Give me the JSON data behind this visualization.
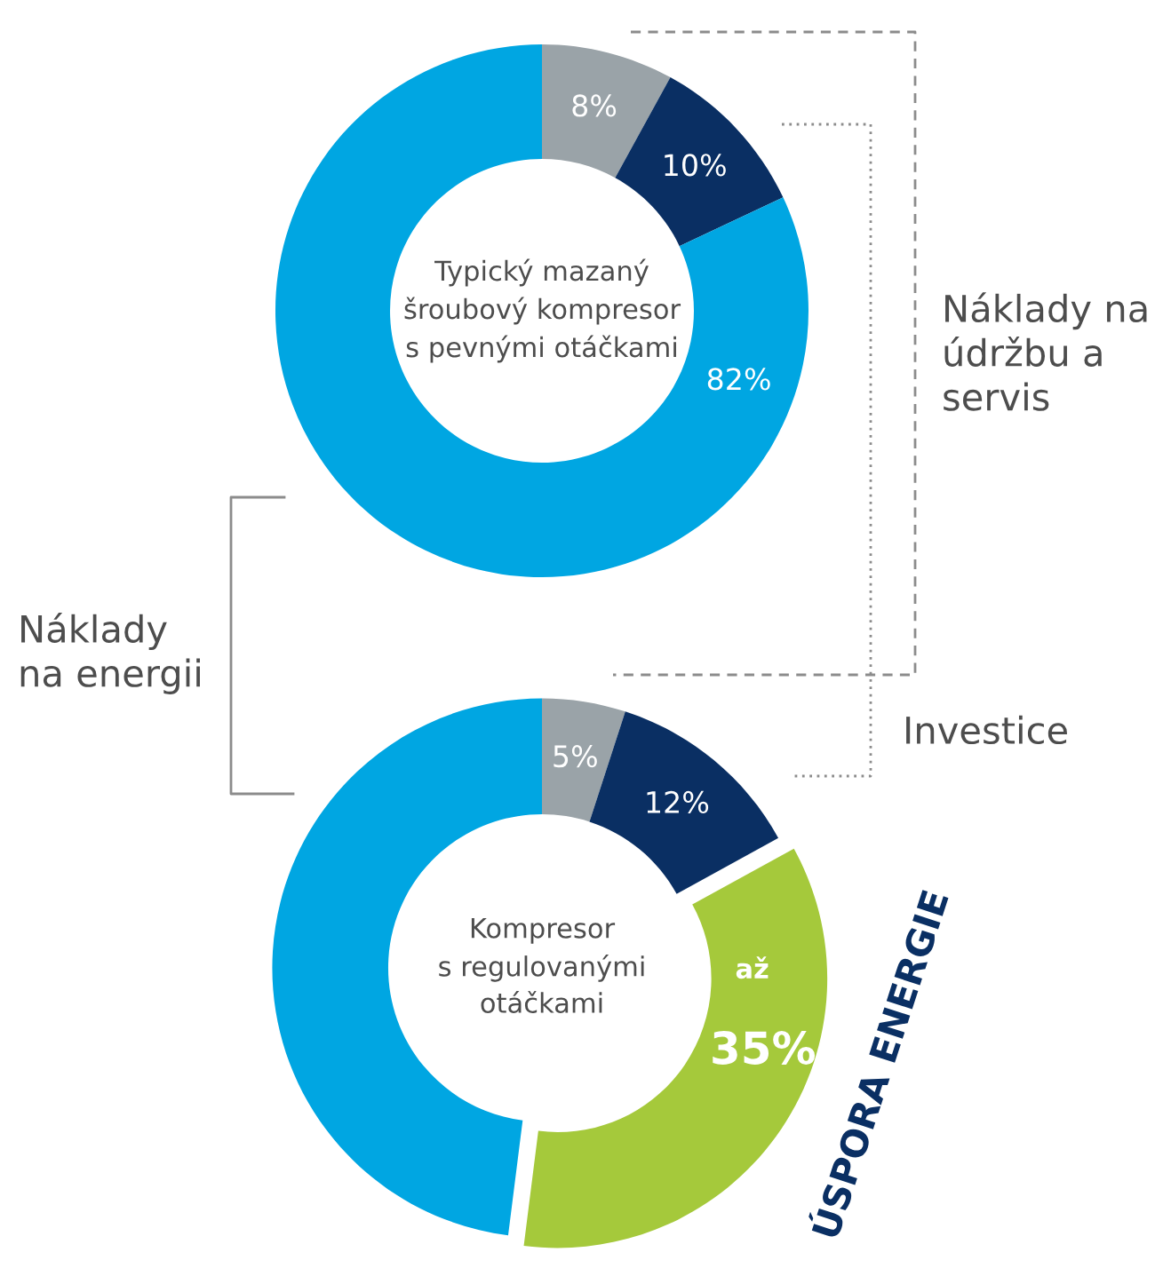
{
  "chart_data": [
    {
      "type": "donut",
      "title": "Typický mazaný\nšroubový kompresor\ns pevnými otáčkami",
      "categories": [
        null,
        null,
        null
      ],
      "values": [
        8,
        10,
        82
      ],
      "colors": [
        "#9aa3a8",
        "#0a2f63",
        "#00a6e2"
      ],
      "value_labels": [
        "8%",
        "10%",
        "82%"
      ],
      "annotations": [
        "Náklady na\núdržbu a\nservis",
        "Investice",
        "Náklady\nna energii"
      ]
    },
    {
      "type": "donut",
      "title": "Kompresor\ns regulovanými\notáčkami",
      "categories": [
        null,
        null,
        null,
        null
      ],
      "values": [
        5,
        12,
        35,
        48
      ],
      "colors": [
        "#9aa3a8",
        "#0a2f63",
        "#a5c93b",
        "#00a6e2"
      ],
      "value_labels": [
        "5%",
        "12%",
        "35%",
        null
      ],
      "annotations": [
        "až",
        "ÚSPORA ENERGIE"
      ]
    }
  ]
}
